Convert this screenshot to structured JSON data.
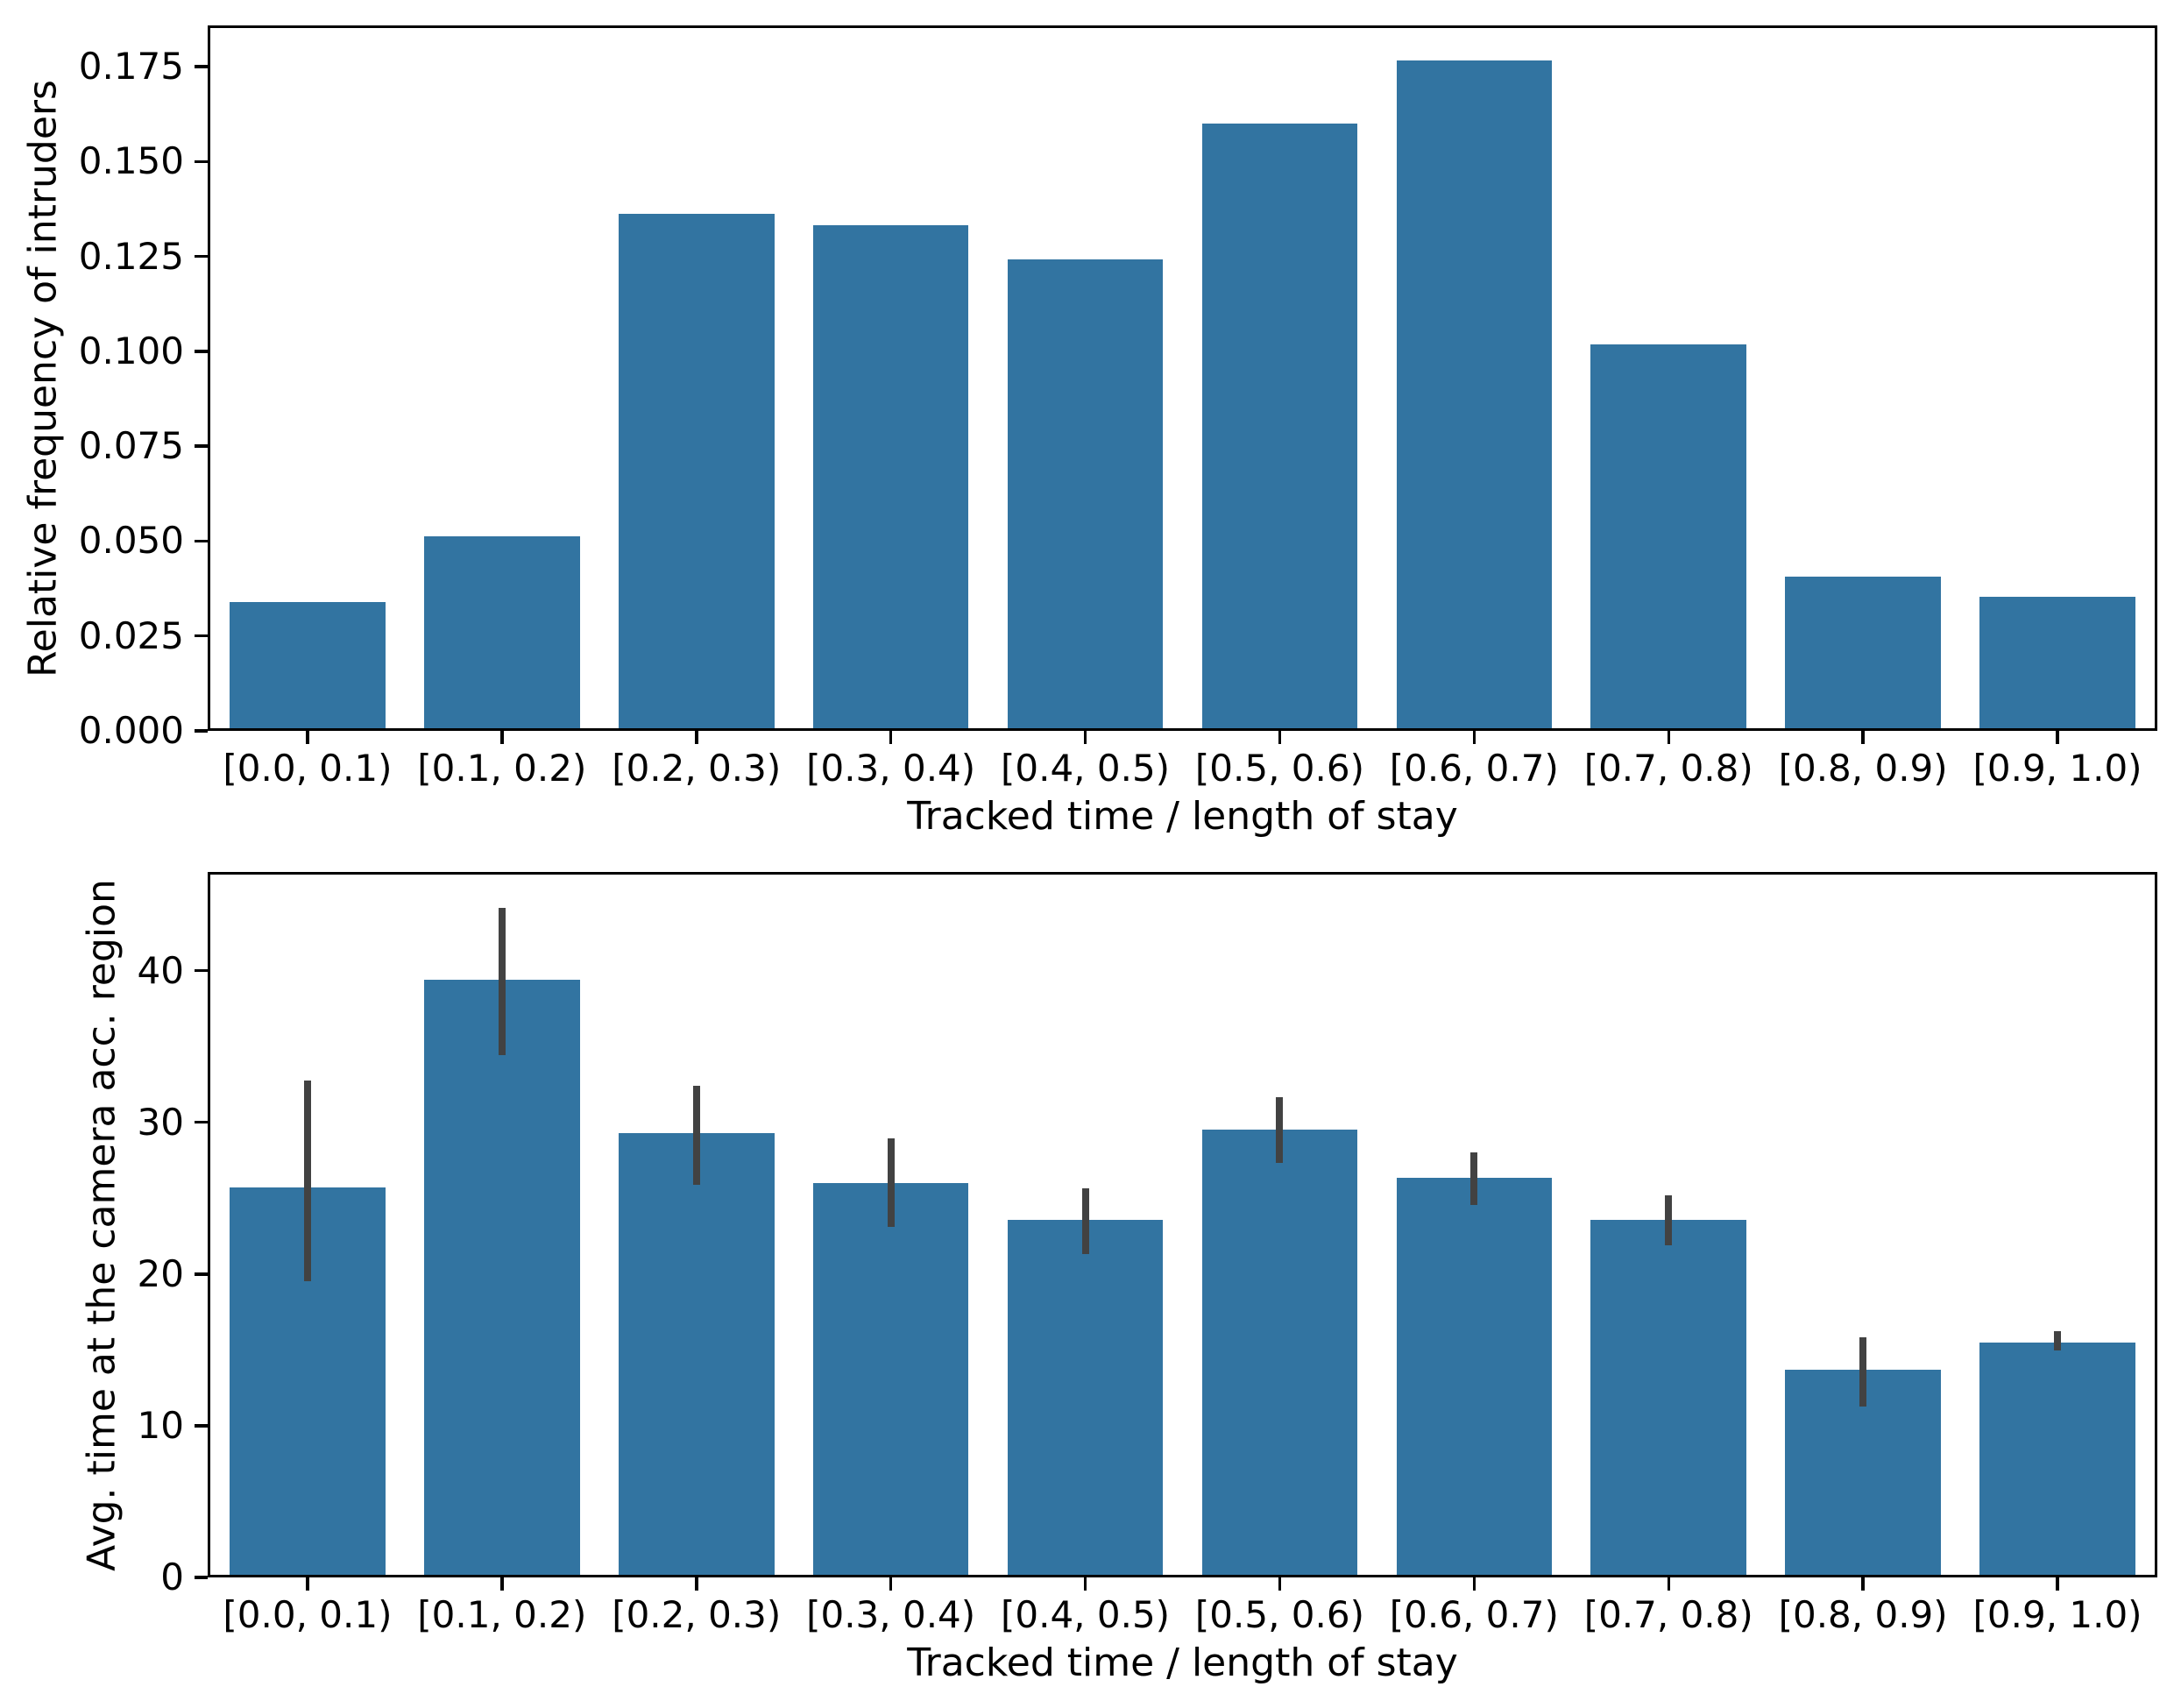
{
  "figure": {
    "background": "#ffffff"
  },
  "colors": {
    "bar_fill": "#3274a1",
    "error_bar": "#424242",
    "axis": "#000000",
    "text": "#000000"
  },
  "chart_data": [
    {
      "type": "bar",
      "title": "",
      "xlabel": "Tracked time / length of stay",
      "ylabel": "Relative frequency of intruders",
      "categories": [
        "[0.0, 0.1)",
        "[0.1, 0.2)",
        "[0.2, 0.3)",
        "[0.3, 0.4)",
        "[0.4, 0.5)",
        "[0.5, 0.6)",
        "[0.6, 0.7)",
        "[0.7, 0.8)",
        "[0.8, 0.9)",
        "[0.9, 1.0)"
      ],
      "values": [
        0.0335,
        0.051,
        0.1365,
        0.1335,
        0.1245,
        0.1605,
        0.1772,
        0.102,
        0.0402,
        0.035
      ],
      "yticks": [
        0.0,
        0.025,
        0.05,
        0.075,
        0.1,
        0.125,
        0.15,
        0.175
      ],
      "ytick_labels": [
        "0.000",
        "0.025",
        "0.050",
        "0.075",
        "0.100",
        "0.125",
        "0.150",
        "0.175"
      ],
      "ylim": [
        0,
        0.1859
      ],
      "grid": false,
      "legend": null,
      "bar_color": "#3274a1"
    },
    {
      "type": "bar",
      "title": "",
      "xlabel": "Tracked time / length of stay",
      "ylabel": "Avg. time at the camera acc. region",
      "categories": [
        "[0.0, 0.1)",
        "[0.1, 0.2)",
        "[0.2, 0.3)",
        "[0.3, 0.4)",
        "[0.4, 0.5)",
        "[0.5, 0.6)",
        "[0.6, 0.7)",
        "[0.7, 0.8)",
        "[0.8, 0.9)",
        "[0.9, 1.0)"
      ],
      "values": [
        25.7,
        39.5,
        29.35,
        26.0,
        23.55,
        29.55,
        26.35,
        23.6,
        13.6,
        15.45
      ],
      "error_low": [
        19.5,
        34.5,
        25.9,
        23.1,
        21.3,
        27.35,
        24.55,
        21.9,
        11.2,
        14.9
      ],
      "error_high": [
        32.8,
        44.3,
        32.5,
        29.0,
        25.65,
        31.7,
        28.05,
        25.2,
        15.8,
        16.2
      ],
      "yticks": [
        0,
        10,
        20,
        30,
        40
      ],
      "ytick_labels": [
        "0",
        "10",
        "20",
        "30",
        "40"
      ],
      "ylim": [
        0,
        46.5
      ],
      "grid": false,
      "legend": null,
      "bar_color": "#3274a1",
      "error_color": "#424242"
    }
  ]
}
